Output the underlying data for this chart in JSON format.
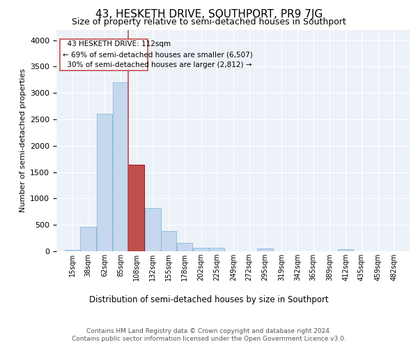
{
  "title": "43, HESKETH DRIVE, SOUTHPORT, PR9 7JG",
  "subtitle": "Size of property relative to semi-detached houses in Southport",
  "xlabel": "Distribution of semi-detached houses by size in Southport",
  "ylabel": "Number of semi-detached properties",
  "property_label": "43 HESKETH DRIVE: 112sqm",
  "pct_smaller": 69,
  "n_smaller": 6507,
  "pct_larger": 30,
  "n_larger": 2812,
  "bin_labels": [
    "15sqm",
    "38sqm",
    "62sqm",
    "85sqm",
    "108sqm",
    "132sqm",
    "155sqm",
    "178sqm",
    "202sqm",
    "225sqm",
    "249sqm",
    "272sqm",
    "295sqm",
    "319sqm",
    "342sqm",
    "365sqm",
    "389sqm",
    "412sqm",
    "435sqm",
    "459sqm",
    "482sqm"
  ],
  "bin_edges": [
    15,
    38,
    62,
    85,
    108,
    132,
    155,
    178,
    202,
    225,
    249,
    272,
    295,
    319,
    342,
    365,
    389,
    412,
    435,
    459,
    482
  ],
  "bar_heights": [
    30,
    460,
    2600,
    3200,
    1640,
    820,
    380,
    155,
    70,
    65,
    0,
    0,
    55,
    0,
    0,
    0,
    0,
    40,
    0,
    0,
    0
  ],
  "highlight_bin_idx": 4,
  "bar_color": "#c5d8ed",
  "bar_edge_color": "#7aafd4",
  "highlight_bar_color": "#c0504d",
  "highlight_bar_edge_color": "#9b1c1c",
  "vline_color": "#c0504d",
  "annotation_box_edge_color": "#c0504d",
  "ylim": [
    0,
    4200
  ],
  "yticks": [
    0,
    500,
    1000,
    1500,
    2000,
    2500,
    3000,
    3500,
    4000
  ],
  "background_color": "#edf2f9",
  "footer_line1": "Contains HM Land Registry data © Crown copyright and database right 2024.",
  "footer_line2": "Contains public sector information licensed under the Open Government Licence v3.0."
}
